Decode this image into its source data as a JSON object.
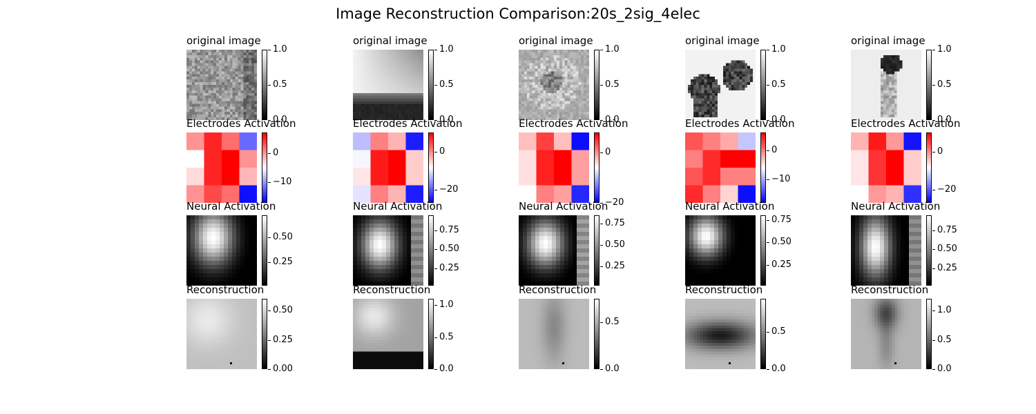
{
  "title": "Image Reconstruction Comparison:20s_2sig_4elec",
  "chart_data": {
    "type": "heatmap",
    "title": "Image Reconstruction Comparison:20s_2sig_4elec",
    "row_titles": [
      "original image",
      "Electrodes Activation",
      "Neural Activation",
      "Reconstruction"
    ],
    "columns": [
      {
        "original": {
          "cmap": "gray",
          "range": [
            0,
            1
          ],
          "ticks": [
            "0.0",
            "0.5",
            "1.0"
          ],
          "tick_values": [
            0,
            0.5,
            1
          ]
        },
        "electrodes": {
          "cmap": "bwr",
          "range": [
            -17,
            7
          ],
          "ticks": [
            "0",
            "−10"
          ],
          "tick_values": [
            0,
            -10
          ],
          "grid": [
            [
              3,
              6,
              4,
              -10
            ],
            [
              0,
              6,
              7,
              3
            ],
            [
              1,
              6,
              7,
              2
            ],
            [
              3,
              5,
              4,
              -16
            ]
          ]
        },
        "neural": {
          "cmap": "gray",
          "range": [
            0.02,
            0.72
          ],
          "ticks": [
            "0.50",
            "0.25"
          ],
          "tick_values": [
            0.5,
            0.25
          ],
          "blob": {
            "cx": 0.38,
            "cy": 0.32,
            "sx": 0.2,
            "sy": 0.27,
            "amp": 0.72,
            "edge_dark": 0
          }
        },
        "recon": {
          "cmap": "gray",
          "range": [
            0,
            0.6
          ],
          "ticks": [
            "0.50",
            "0.25",
            "0.00"
          ],
          "tick_values": [
            0.5,
            0.25,
            0
          ],
          "base": 0.45,
          "blobs": [
            [
              0.3,
              0.3,
              0.25,
              0.25,
              0.1
            ]
          ]
        }
      },
      {
        "original": {
          "cmap": "gray",
          "range": [
            0,
            1
          ],
          "ticks": [
            "0.0",
            "0.5",
            "1.0"
          ],
          "tick_values": [
            0,
            0.5,
            1
          ]
        },
        "electrodes": {
          "cmap": "bwr",
          "range": [
            -27,
            10
          ],
          "ticks": [
            "0",
            "−20"
          ],
          "tick_values": [
            0,
            -20
          ],
          "grid": [
            [
              -7,
              5,
              3,
              -24
            ],
            [
              -1,
              9,
              10,
              2
            ],
            [
              1,
              9,
              10,
              2
            ],
            [
              -3,
              5,
              3,
              -24
            ]
          ]
        },
        "neural": {
          "cmap": "gray",
          "range": [
            0.02,
            0.95
          ],
          "ticks": [
            "0.75",
            "0.50",
            "0.25"
          ],
          "tick_values": [
            0.75,
            0.5,
            0.25
          ],
          "blob": {
            "cx": 0.38,
            "cy": 0.42,
            "sx": 0.18,
            "sy": 0.24,
            "amp": 0.95,
            "edge_dark": 1
          }
        },
        "recon": {
          "cmap": "gray",
          "range": [
            0,
            1.1
          ],
          "ticks": [
            "1.0",
            "0.5",
            "0.0"
          ],
          "tick_values": [
            1,
            0.5,
            0
          ],
          "base": 0.7,
          "blobs": [
            [
              0.3,
              0.25,
              0.2,
              0.2,
              0.3
            ]
          ],
          "bottom_dark": 1
        }
      },
      {
        "original": {
          "cmap": "gray",
          "range": [
            0,
            1
          ],
          "ticks": [
            "0.0",
            "0.5",
            "1.0"
          ],
          "tick_values": [
            0,
            0.5,
            1
          ]
        },
        "electrodes": {
          "cmap": "bwr",
          "range": [
            -20,
            8
          ],
          "ticks": [
            "0",
            "−20"
          ],
          "tick_values": [
            0,
            -20
          ],
          "grid": [
            [
              2,
              6,
              2,
              -19
            ],
            [
              1,
              7,
              8,
              3
            ],
            [
              1,
              7,
              8,
              3
            ],
            [
              0,
              4,
              3,
              -17
            ]
          ]
        },
        "neural": {
          "cmap": "gray",
          "range": [
            0.02,
            0.85
          ],
          "ticks": [
            "0.75",
            "0.50",
            "0.25"
          ],
          "tick_values": [
            0.75,
            0.5,
            0.25
          ],
          "blob": {
            "cx": 0.38,
            "cy": 0.4,
            "sx": 0.18,
            "sy": 0.23,
            "amp": 0.85,
            "edge_dark": 1
          }
        },
        "recon": {
          "cmap": "gray",
          "range": [
            0,
            0.75
          ],
          "ticks": [
            "0.5",
            "0.0"
          ],
          "tick_values": [
            0.5,
            0
          ],
          "base": 0.55,
          "blobs": [
            [
              0.5,
              0.4,
              0.12,
              0.35,
              -0.15
            ]
          ]
        }
      },
      {
        "original": {
          "cmap": "gray",
          "range": [
            0,
            1
          ],
          "ticks": [
            "0.0",
            "0.5",
            "1.0"
          ],
          "tick_values": [
            0,
            0.5,
            1
          ]
        },
        "electrodes": {
          "cmap": "bwr",
          "range": [
            -18,
            6
          ],
          "ticks": [
            "0",
            "−10"
          ],
          "tick_values": [
            0,
            -10
          ],
          "grid": [
            [
              4,
              3,
              2,
              -4
            ],
            [
              3,
              5,
              6,
              6
            ],
            [
              4,
              5,
              3,
              3
            ],
            [
              5,
              3,
              1,
              -17
            ]
          ]
        },
        "neural": {
          "cmap": "gray",
          "range": [
            0.02,
            0.8
          ],
          "ticks": [
            "0.75",
            "0.50",
            "0.25"
          ],
          "tick_values": [
            0.75,
            0.5,
            0.25
          ],
          "blob": {
            "cx": 0.3,
            "cy": 0.3,
            "sx": 0.17,
            "sy": 0.2,
            "amp": 0.8,
            "edge_dark": 0
          }
        },
        "recon": {
          "cmap": "gray",
          "range": [
            0,
            0.95
          ],
          "ticks": [
            "0.5",
            "0.0"
          ],
          "tick_values": [
            0.5,
            0
          ],
          "base": 0.7,
          "blobs": [
            [
              0.5,
              0.52,
              0.35,
              0.14,
              -0.6
            ]
          ]
        }
      },
      {
        "original": {
          "cmap": "gray",
          "range": [
            0,
            1
          ],
          "ticks": [
            "0.0",
            "0.5",
            "1.0"
          ],
          "tick_values": [
            0,
            0.5,
            1
          ]
        },
        "electrodes": {
          "cmap": "bwr",
          "range": [
            -27,
            10
          ],
          "ticks": [
            "0",
            "−20"
          ],
          "tick_values": [
            0,
            -20
          ],
          "grid": [
            [
              3,
              9,
              4,
              -25
            ],
            [
              1,
              8,
              10,
              2
            ],
            [
              1,
              8,
              10,
              2
            ],
            [
              0,
              4,
              3,
              -22
            ]
          ]
        },
        "neural": {
          "cmap": "gray",
          "range": [
            0.02,
            0.95
          ],
          "ticks": [
            "0.75",
            "0.50",
            "0.25"
          ],
          "tick_values": [
            0.75,
            0.5,
            0.25
          ],
          "blob": {
            "cx": 0.35,
            "cy": 0.45,
            "sx": 0.15,
            "sy": 0.3,
            "amp": 0.95,
            "edge_dark": 1
          }
        },
        "recon": {
          "cmap": "gray",
          "range": [
            0,
            1.2
          ],
          "ticks": [
            "1.0",
            "0.5",
            "0.0"
          ],
          "tick_values": [
            1,
            0.5,
            0
          ],
          "base": 0.85,
          "blobs": [
            [
              0.5,
              0.2,
              0.12,
              0.16,
              -0.5
            ],
            [
              0.5,
              0.65,
              0.08,
              0.25,
              -0.2
            ]
          ]
        }
      }
    ]
  }
}
